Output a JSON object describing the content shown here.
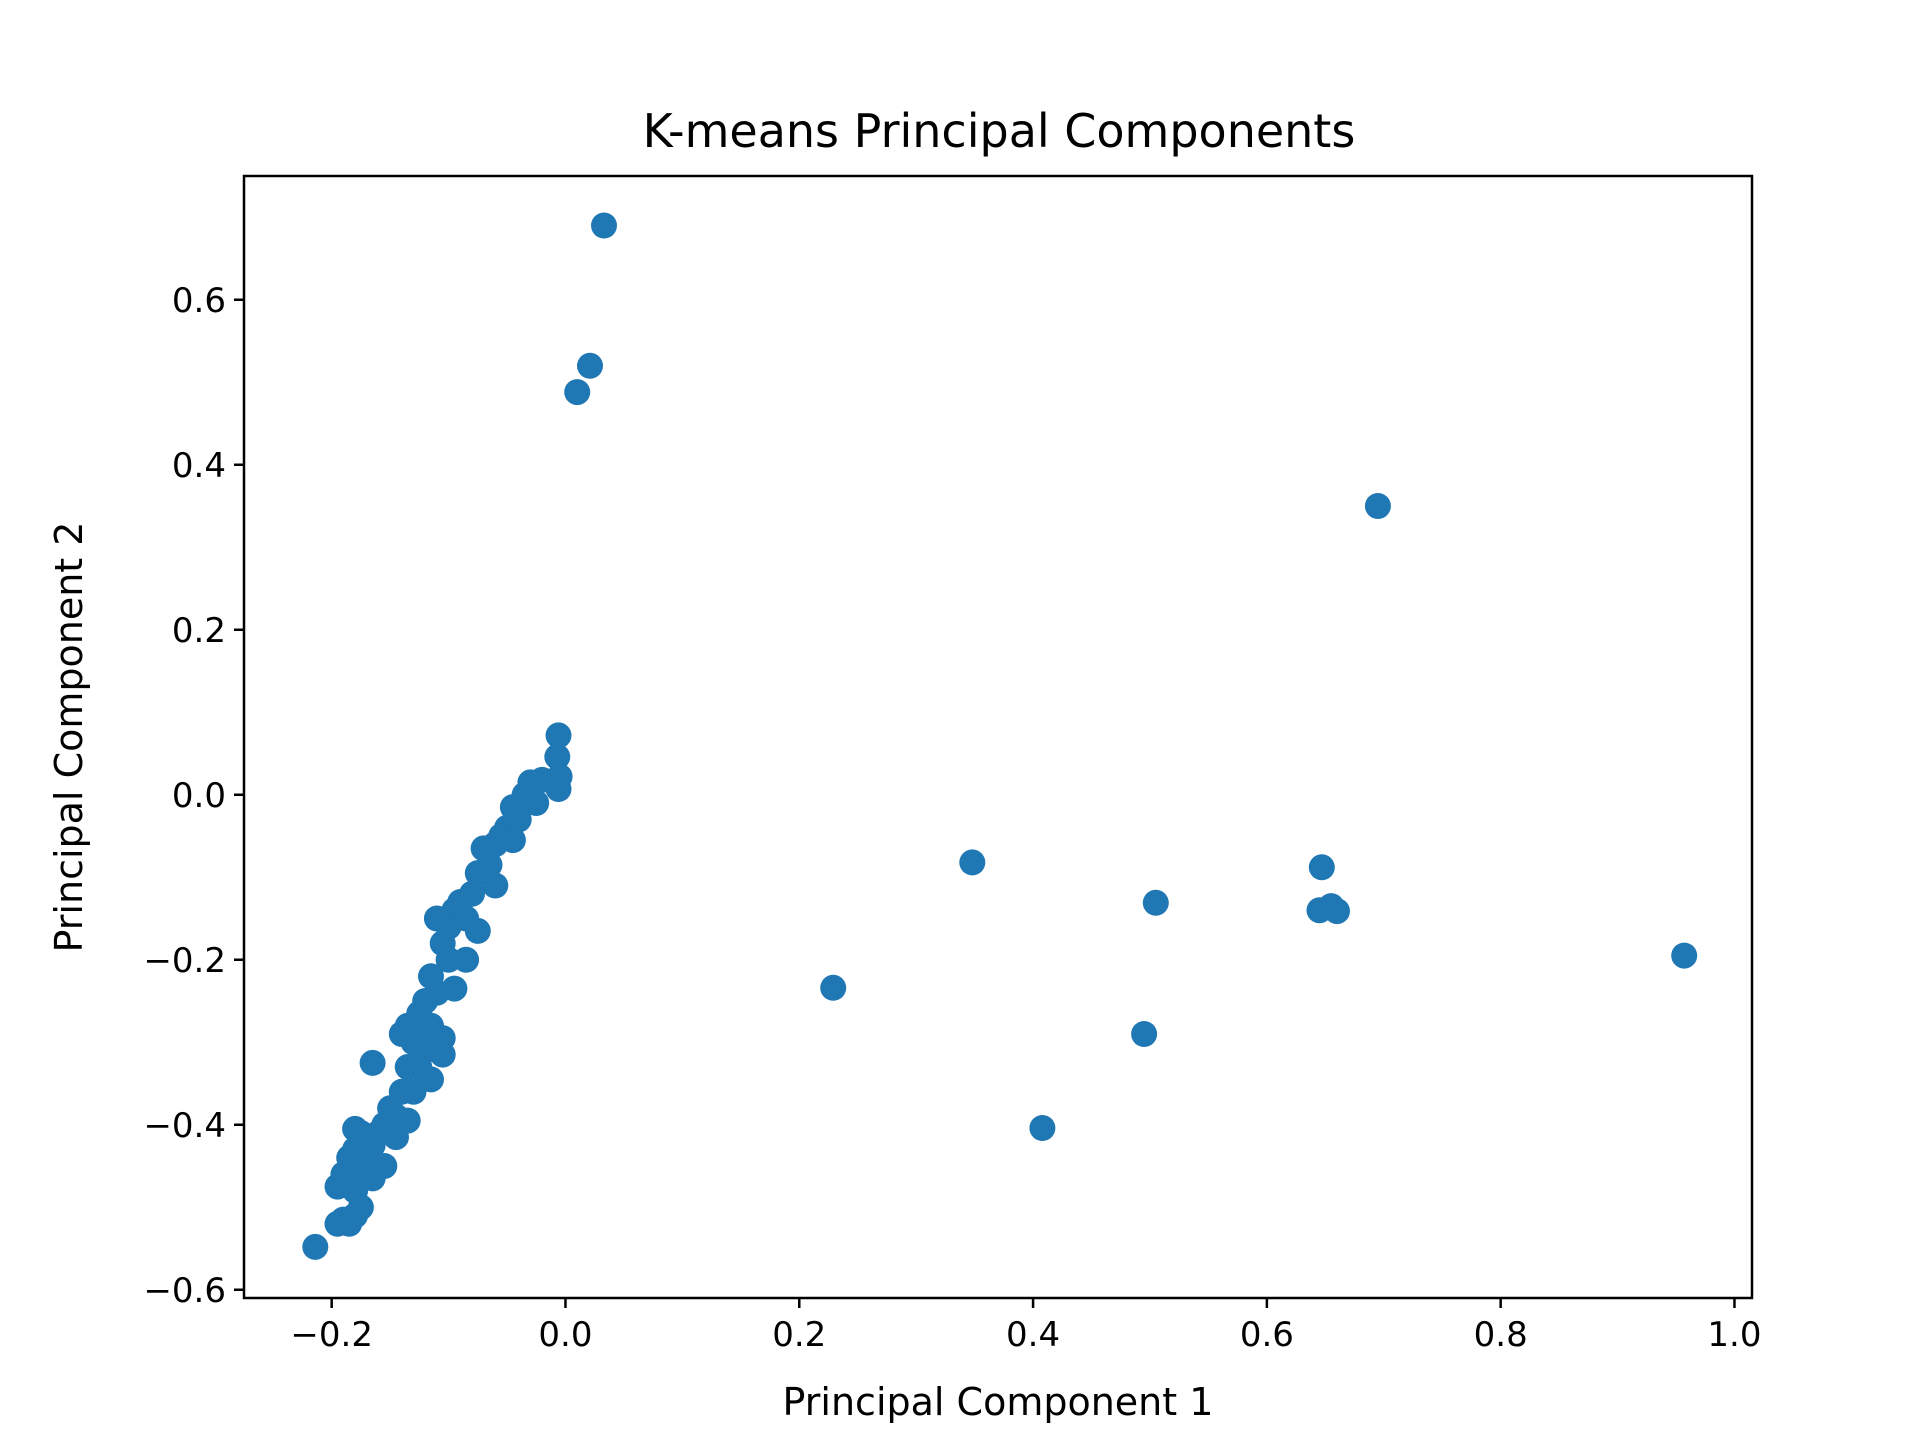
{
  "chart_data": {
    "type": "scatter",
    "title": "K-means Principal Components",
    "xlabel": "Principal Component 1",
    "ylabel": "Principal Component 2",
    "xlim": [
      -0.275,
      1.015
    ],
    "ylim": [
      -0.61,
      0.75
    ],
    "xticks": [
      -0.2,
      0.0,
      0.2,
      0.4,
      0.6,
      0.8,
      1.0
    ],
    "xtick_labels": [
      "−0.2",
      "0.0",
      "0.2",
      "0.4",
      "0.6",
      "0.8",
      "1.0"
    ],
    "yticks": [
      -0.6,
      -0.4,
      -0.2,
      0.0,
      0.2,
      0.4,
      0.6
    ],
    "ytick_labels": [
      "−0.6",
      "−0.4",
      "−0.2",
      "0.0",
      "0.2",
      "0.4",
      "0.6"
    ],
    "grid": false,
    "legend": "none",
    "marker_color": "#1f77b4",
    "series": [
      {
        "points": [
          [
            0.033,
            0.69
          ],
          [
            0.021,
            0.52
          ],
          [
            0.01,
            0.488
          ],
          [
            0.695,
            0.35
          ],
          [
            0.348,
            -0.082
          ],
          [
            0.229,
            -0.234
          ],
          [
            0.505,
            -0.131
          ],
          [
            0.495,
            -0.29
          ],
          [
            0.408,
            -0.404
          ],
          [
            0.647,
            -0.088
          ],
          [
            0.645,
            -0.14
          ],
          [
            0.655,
            -0.135
          ],
          [
            0.66,
            -0.141
          ],
          [
            0.957,
            -0.195
          ],
          [
            -0.006,
            0.072
          ],
          [
            -0.007,
            0.046
          ],
          [
            -0.005,
            0.022
          ],
          [
            -0.006,
            0.007
          ],
          [
            -0.02,
            0.018
          ],
          [
            -0.03,
            0.015
          ],
          [
            -0.035,
            0.0
          ],
          [
            -0.025,
            -0.01
          ],
          [
            -0.045,
            -0.015
          ],
          [
            -0.04,
            -0.03
          ],
          [
            -0.05,
            -0.04
          ],
          [
            -0.055,
            -0.05
          ],
          [
            -0.06,
            -0.06
          ],
          [
            -0.045,
            -0.055
          ],
          [
            -0.07,
            -0.065
          ],
          [
            -0.065,
            -0.085
          ],
          [
            -0.075,
            -0.095
          ],
          [
            -0.06,
            -0.11
          ],
          [
            -0.08,
            -0.12
          ],
          [
            -0.09,
            -0.13
          ],
          [
            -0.085,
            -0.15
          ],
          [
            -0.095,
            -0.14
          ],
          [
            -0.1,
            -0.16
          ],
          [
            -0.075,
            -0.165
          ],
          [
            -0.11,
            -0.15
          ],
          [
            -0.105,
            -0.18
          ],
          [
            -0.085,
            -0.2
          ],
          [
            -0.1,
            -0.2
          ],
          [
            -0.115,
            -0.22
          ],
          [
            -0.11,
            -0.24
          ],
          [
            -0.095,
            -0.235
          ],
          [
            -0.12,
            -0.25
          ],
          [
            -0.125,
            -0.265
          ],
          [
            -0.115,
            -0.28
          ],
          [
            -0.105,
            -0.295
          ],
          [
            -0.135,
            -0.28
          ],
          [
            -0.13,
            -0.3
          ],
          [
            -0.14,
            -0.29
          ],
          [
            -0.12,
            -0.31
          ],
          [
            -0.105,
            -0.315
          ],
          [
            -0.125,
            -0.33
          ],
          [
            -0.135,
            -0.33
          ],
          [
            -0.115,
            -0.345
          ],
          [
            -0.14,
            -0.36
          ],
          [
            -0.13,
            -0.36
          ],
          [
            -0.15,
            -0.38
          ],
          [
            -0.145,
            -0.39
          ],
          [
            -0.135,
            -0.395
          ],
          [
            -0.155,
            -0.4
          ],
          [
            -0.16,
            -0.41
          ],
          [
            -0.145,
            -0.415
          ],
          [
            -0.165,
            -0.425
          ],
          [
            -0.175,
            -0.41
          ],
          [
            -0.18,
            -0.405
          ],
          [
            -0.17,
            -0.44
          ],
          [
            -0.155,
            -0.45
          ],
          [
            -0.18,
            -0.43
          ],
          [
            -0.185,
            -0.44
          ],
          [
            -0.175,
            -0.455
          ],
          [
            -0.165,
            -0.465
          ],
          [
            -0.19,
            -0.46
          ],
          [
            -0.195,
            -0.475
          ],
          [
            -0.18,
            -0.48
          ],
          [
            -0.175,
            -0.5
          ],
          [
            -0.18,
            -0.51
          ],
          [
            -0.185,
            -0.52
          ],
          [
            -0.19,
            -0.515
          ],
          [
            -0.195,
            -0.52
          ],
          [
            -0.165,
            -0.325
          ],
          [
            -0.214,
            -0.548
          ]
        ]
      }
    ]
  }
}
